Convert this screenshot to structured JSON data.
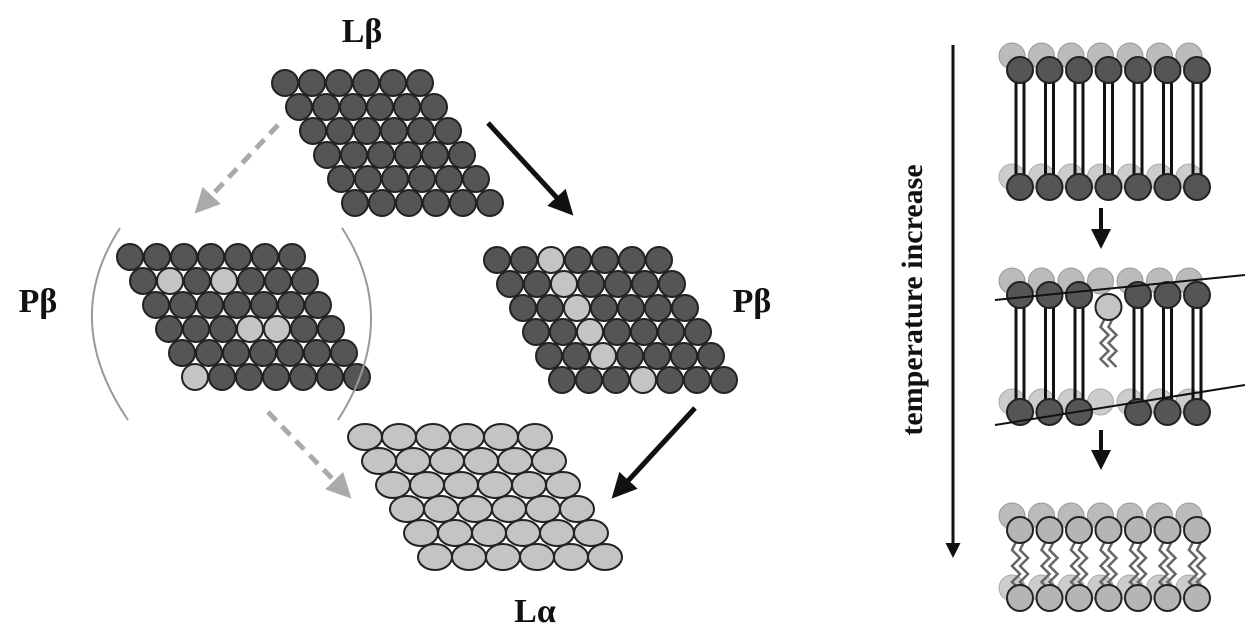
{
  "labels": {
    "top": "Lβ",
    "left": "Pβ",
    "right": "Pβ",
    "bottom": "Lα"
  },
  "axis_label": "temperature increase"
}
